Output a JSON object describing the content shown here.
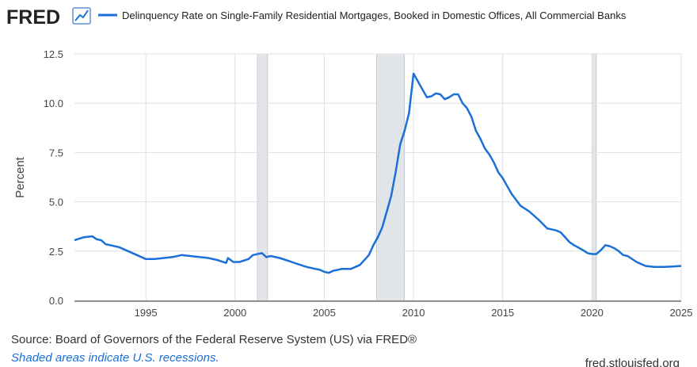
{
  "brand": "FRED",
  "chart_data": {
    "type": "line",
    "title": "Delinquency Rate on Single-Family Residential Mortgages, Booked in Domestic Offices, All Commercial Banks",
    "ylabel": "Percent",
    "source": "Source: Board of Governors of the Federal Reserve System (US) via FRED®",
    "note": "Shaded areas indicate U.S. recessions.",
    "site": "fred.stlouisfed.org",
    "xlim": [
      1991,
      2025
    ],
    "xticks": [
      1995,
      2000,
      2005,
      2010,
      2015,
      2020,
      2025
    ],
    "ylim": [
      0,
      12.5
    ],
    "yticks": [
      {
        "value": 0,
        "label": "0.0"
      },
      2.5,
      {
        "value": 5,
        "label": "5.0"
      },
      7.5,
      {
        "value": 10,
        "label": "10.0"
      },
      12.5
    ],
    "grid": true,
    "recessions": [
      [
        2001.25,
        2001.83
      ],
      [
        2007.92,
        2009.5
      ],
      [
        2020.0,
        2020.25
      ]
    ],
    "series": [
      {
        "name": "Delinquency Rate on Single-Family Residential Mortgages, Booked in Domestic Offices, All Commercial Banks",
        "color": "#1a6fd8",
        "x": [
          1991.0,
          1991.5,
          1992.0,
          1992.25,
          1992.5,
          1992.75,
          1993.0,
          1993.5,
          1994.0,
          1994.5,
          1995.0,
          1995.5,
          1996.0,
          1996.5,
          1997.0,
          1997.5,
          1998.0,
          1998.5,
          1999.0,
          1999.5,
          1999.6,
          1999.9,
          2000.25,
          2000.75,
          2001.0,
          2001.5,
          2001.75,
          2002.0,
          2002.5,
          2003.0,
          2003.5,
          2004.0,
          2004.5,
          2004.75,
          2005.0,
          2005.25,
          2005.5,
          2006.0,
          2006.5,
          2007.0,
          2007.5,
          2007.75,
          2008.0,
          2008.25,
          2008.5,
          2008.75,
          2009.0,
          2009.25,
          2009.5,
          2009.75,
          2010.0,
          2010.25,
          2010.5,
          2010.75,
          2011.0,
          2011.25,
          2011.5,
          2011.75,
          2012.0,
          2012.25,
          2012.5,
          2012.75,
          2013.0,
          2013.25,
          2013.5,
          2013.75,
          2014.0,
          2014.25,
          2014.5,
          2014.75,
          2015.0,
          2015.25,
          2015.5,
          2015.75,
          2016.0,
          2016.5,
          2017.0,
          2017.5,
          2018.0,
          2018.25,
          2018.5,
          2018.75,
          2019.0,
          2019.5,
          2019.75,
          2020.0,
          2020.25,
          2020.5,
          2020.75,
          2021.0,
          2021.25,
          2021.5,
          2021.75,
          2022.0,
          2022.5,
          2023.0,
          2023.5,
          2024.0,
          2024.5,
          2025.0
        ],
        "values": [
          3.05,
          3.2,
          3.25,
          3.1,
          3.05,
          2.85,
          2.8,
          2.7,
          2.5,
          2.3,
          2.1,
          2.1,
          2.15,
          2.2,
          2.3,
          2.25,
          2.2,
          2.15,
          2.05,
          1.9,
          2.15,
          1.95,
          1.95,
          2.1,
          2.3,
          2.4,
          2.2,
          2.25,
          2.15,
          2.0,
          1.85,
          1.7,
          1.6,
          1.55,
          1.45,
          1.4,
          1.5,
          1.6,
          1.6,
          1.8,
          2.3,
          2.8,
          3.2,
          3.7,
          4.5,
          5.3,
          6.5,
          7.9,
          8.6,
          9.5,
          11.5,
          11.1,
          10.7,
          10.3,
          10.35,
          10.5,
          10.45,
          10.2,
          10.3,
          10.45,
          10.45,
          10.0,
          9.75,
          9.3,
          8.6,
          8.2,
          7.7,
          7.4,
          7.0,
          6.5,
          6.2,
          5.8,
          5.4,
          5.1,
          4.8,
          4.5,
          4.1,
          3.65,
          3.55,
          3.45,
          3.2,
          2.95,
          2.8,
          2.55,
          2.4,
          2.35,
          2.35,
          2.55,
          2.8,
          2.75,
          2.65,
          2.5,
          2.3,
          2.25,
          1.95,
          1.75,
          1.7,
          1.7,
          1.72,
          1.75
        ]
      }
    ]
  }
}
